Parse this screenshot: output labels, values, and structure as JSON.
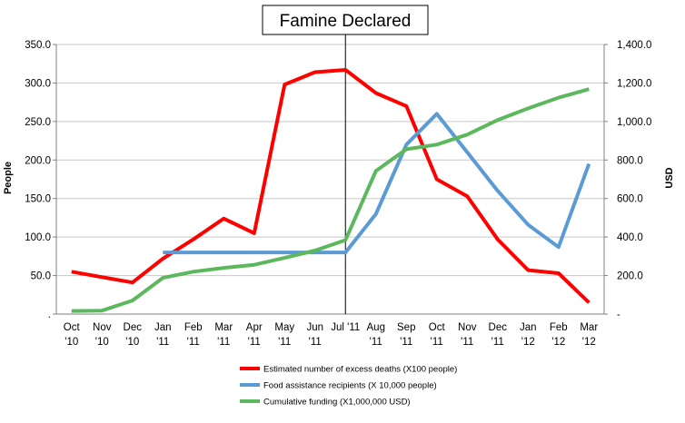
{
  "chart_data": {
    "type": "line",
    "title": "Famine Declared",
    "ylabel_left": "People",
    "ylabel_right": "USD",
    "ylim_left": [
      0,
      350
    ],
    "ylim_right": [
      0,
      1400
    ],
    "yticks_left": [
      ".",
      "50.0",
      "100.0",
      "150.0",
      "200.0",
      "250.0",
      "300.0",
      "350.0"
    ],
    "yticks_right": [
      "-",
      "200.0",
      "400.0",
      "600.0",
      "800.0",
      "1,000.0",
      "1,200.0",
      "1,400.0"
    ],
    "grid": true,
    "legend_position": "bottom",
    "categories": [
      [
        "Oct",
        "'10"
      ],
      [
        "Nov",
        "'10"
      ],
      [
        "Dec",
        "'10"
      ],
      [
        "Jan",
        "'11"
      ],
      [
        "Feb",
        "'11"
      ],
      [
        "Mar",
        "'11"
      ],
      [
        "Apr",
        "'11"
      ],
      [
        "May",
        "'11"
      ],
      [
        "Jun",
        "'11"
      ],
      [
        "Jul '11",
        ""
      ],
      [
        "Aug",
        "'11"
      ],
      [
        "Sep",
        "'11"
      ],
      [
        "Oct",
        "'11"
      ],
      [
        "Nov",
        "'11"
      ],
      [
        "Dec",
        "'11"
      ],
      [
        "Jan",
        "'12"
      ],
      [
        "Feb",
        "'12"
      ],
      [
        "Mar",
        "'12"
      ]
    ],
    "marker_category_index": 9,
    "series": [
      {
        "name": "Estimated number of excess deaths (X100 people)",
        "axis": "left",
        "color": "#ff0000",
        "values": [
          55,
          48,
          41,
          72,
          97,
          124,
          105,
          298,
          314,
          317,
          287,
          270,
          175,
          153,
          97,
          57,
          53,
          15
        ]
      },
      {
        "name": "Food assistance recipients (X 10,000 people)",
        "axis": "left",
        "color": "#5b9bd5",
        "values": [
          null,
          null,
          null,
          80,
          80,
          80,
          80,
          80,
          80,
          80,
          130,
          220,
          260,
          210,
          160,
          116,
          87,
          195
        ]
      },
      {
        "name": "Cumulative funding (X1,000,000 USD)",
        "axis": "right",
        "color": "#5cb85c",
        "values": [
          16,
          18,
          70,
          188,
          220,
          240,
          256,
          292,
          330,
          384,
          744,
          856,
          880,
          932,
          1008,
          1068,
          1124,
          1168
        ]
      }
    ]
  }
}
